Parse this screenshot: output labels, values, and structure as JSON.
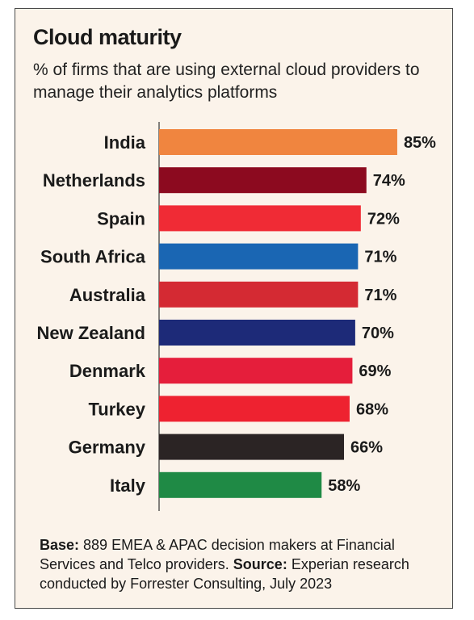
{
  "header": {
    "title": "Cloud maturity",
    "subtitle": "% of firms that are using external cloud providers to manage their analytics platforms"
  },
  "footnote": {
    "base_label": "Base:",
    "base_text": " 889 EMEA & APAC decision makers at Financial Services and Telco providers.",
    "source_label": " Source:",
    "source_text": " Experian research conducted by Forrester Consulting, July 2023"
  },
  "chart_data": {
    "type": "bar",
    "orientation": "horizontal",
    "categories": [
      "India",
      "Netherlands",
      "Spain",
      "South Africa",
      "Australia",
      "New Zealand",
      "Denmark",
      "Turkey",
      "Germany",
      "Italy"
    ],
    "values": [
      85,
      74,
      72,
      71,
      71,
      70,
      69,
      68,
      66,
      58
    ],
    "value_labels": [
      "85%",
      "74%",
      "72%",
      "71%",
      "71%",
      "70%",
      "69%",
      "68%",
      "66%",
      "58%"
    ],
    "colors": [
      "#f0853f",
      "#8c0a1f",
      "#f02b35",
      "#1a66b3",
      "#d42a33",
      "#1d2a78",
      "#e51e3b",
      "#ee2230",
      "#2b2424",
      "#1f8a45"
    ],
    "title": "Cloud maturity",
    "xlabel": "",
    "ylabel": "",
    "xlim": [
      0,
      100
    ],
    "grid": false,
    "legend": "none"
  }
}
